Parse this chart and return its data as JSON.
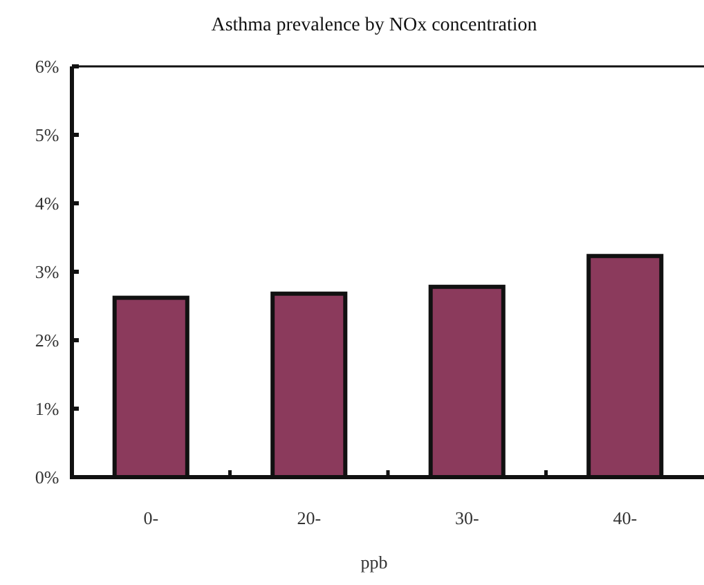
{
  "chart_data": {
    "type": "bar",
    "title": "Asthma prevalence by NOx concentration",
    "xlabel": "ppb",
    "categories": [
      "0-",
      "20-",
      "30-",
      "40-"
    ],
    "values": [
      2.62,
      2.68,
      2.78,
      3.23
    ],
    "color": "#8b3a5c",
    "ylim": [
      0,
      6
    ],
    "yticks": [
      {
        "value": 0,
        "label": "0%"
      },
      {
        "value": 1,
        "label": "1%"
      },
      {
        "value": 2,
        "label": "2%"
      },
      {
        "value": 3,
        "label": "3%"
      },
      {
        "value": 4,
        "label": "4%"
      },
      {
        "value": 5,
        "label": "5%"
      },
      {
        "value": 6,
        "label": "6%"
      }
    ],
    "grid": false
  }
}
